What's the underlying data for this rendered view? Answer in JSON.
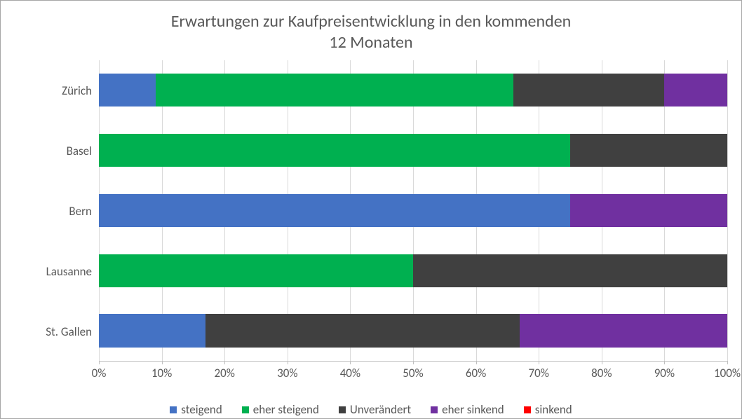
{
  "chart": {
    "type": "stacked_bar_horizontal_100pct",
    "title_line1": "Erwartungen zur Kaufpreisentwicklung in den kommenden",
    "title_line2": "12 Monaten",
    "title_fontsize": 24,
    "title_color": "#595959",
    "background_color": "#ffffff",
    "border_color": "#a6a6a6",
    "grid_color": "#d9d9d9",
    "axis_text_color": "#595959",
    "axis_fontsize": 17,
    "xlim": [
      0,
      100
    ],
    "xtick_step": 10,
    "xticks": [
      "0%",
      "10%",
      "20%",
      "30%",
      "40%",
      "50%",
      "60%",
      "70%",
      "80%",
      "90%",
      "100%"
    ],
    "categories_top_to_bottom": [
      "Zürich",
      "Basel",
      "Bern",
      "Lausanne",
      "St. Gallen"
    ],
    "series": [
      {
        "key": "steigend",
        "label": "steigend",
        "color": "#4472c4"
      },
      {
        "key": "eher_steigend",
        "label": "eher steigend",
        "color": "#00b050"
      },
      {
        "key": "unveraendert",
        "label": "Unverändert",
        "color": "#404040"
      },
      {
        "key": "eher_sinkend",
        "label": "eher sinkend",
        "color": "#7030a0"
      },
      {
        "key": "sinkend",
        "label": "sinkend",
        "color": "#ff0000"
      }
    ],
    "data": {
      "Zürich": {
        "steigend": 9,
        "eher_steigend": 57,
        "unveraendert": 24,
        "eher_sinkend": 10,
        "sinkend": 0
      },
      "Basel": {
        "steigend": 0,
        "eher_steigend": 75,
        "unveraendert": 25,
        "eher_sinkend": 0,
        "sinkend": 0
      },
      "Bern": {
        "steigend": 75,
        "eher_steigend": 0,
        "unveraendert": 0,
        "eher_sinkend": 25,
        "sinkend": 0
      },
      "Lausanne": {
        "steigend": 0,
        "eher_steigend": 50,
        "unveraendert": 50,
        "eher_sinkend": 0,
        "sinkend": 0
      },
      "St. Gallen": {
        "steigend": 17,
        "eher_steigend": 0,
        "unveraendert": 50,
        "eher_sinkend": 33,
        "sinkend": 0
      }
    },
    "bar_height_ratio": 0.55
  }
}
